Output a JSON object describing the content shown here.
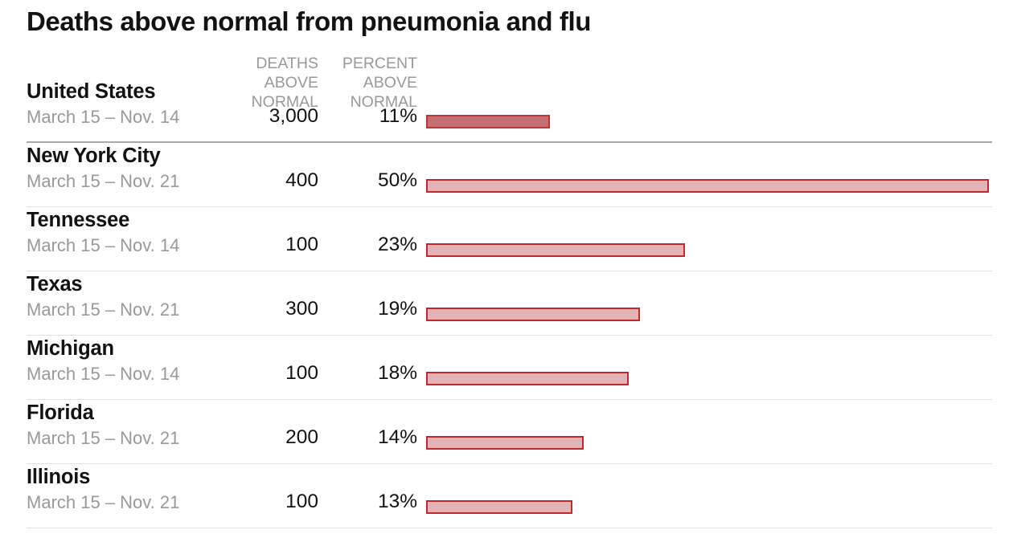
{
  "title": "Deaths above normal from pneumonia and flu",
  "headers": {
    "deaths": [
      "DEATHS",
      "ABOVE",
      "NORMAL"
    ],
    "percent": [
      "PERCENT",
      "ABOVE",
      "NORMAL"
    ]
  },
  "colors": {
    "bar_fill": "#e3b4b6",
    "bar_stroke": "#c1282d",
    "total_bar_fill": "#c46f71"
  },
  "chart_data": {
    "type": "bar",
    "title": "Deaths above normal from pneumonia and flu",
    "xlabel": "",
    "ylabel": "",
    "xlim": [
      0,
      50
    ],
    "rows": [
      {
        "name": "United States",
        "dates": "March 15 – Nov. 14",
        "deaths_label": "3,000",
        "percent_label": "11%",
        "percent": 11,
        "total": true
      },
      {
        "name": "New York City",
        "dates": "March 15 – Nov. 21",
        "deaths_label": "400",
        "percent_label": "50%",
        "percent": 50
      },
      {
        "name": "Tennessee",
        "dates": "March 15 – Nov. 14",
        "deaths_label": "100",
        "percent_label": "23%",
        "percent": 23
      },
      {
        "name": "Texas",
        "dates": "March 15 – Nov. 21",
        "deaths_label": "300",
        "percent_label": "19%",
        "percent": 19
      },
      {
        "name": "Michigan",
        "dates": "March 15 – Nov. 14",
        "deaths_label": "100",
        "percent_label": "18%",
        "percent": 18
      },
      {
        "name": "Florida",
        "dates": "March 15 – Nov. 21",
        "deaths_label": "200",
        "percent_label": "14%",
        "percent": 14
      },
      {
        "name": "Illinois",
        "dates": "March 15 – Nov. 21",
        "deaths_label": "100",
        "percent_label": "13%",
        "percent": 13
      }
    ]
  }
}
